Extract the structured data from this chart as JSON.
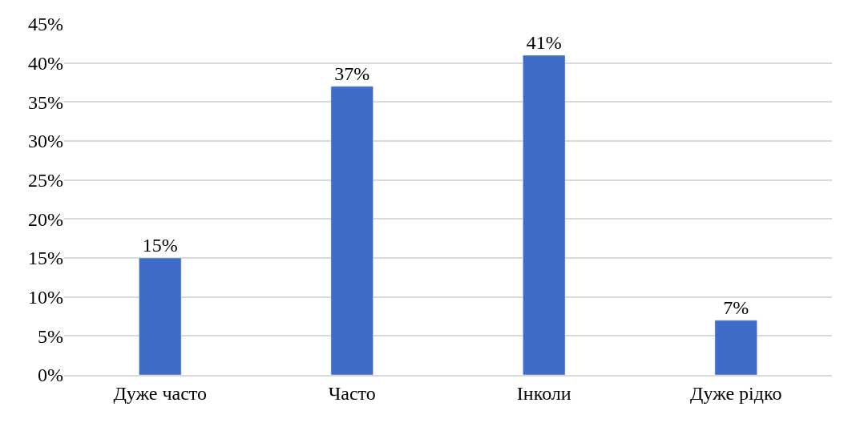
{
  "chart_data": {
    "type": "bar",
    "categories": [
      "Дуже часто",
      "Часто",
      "Інколи",
      "Дуже рідко"
    ],
    "values": [
      15,
      37,
      41,
      7
    ],
    "value_labels": [
      "15%",
      "37%",
      "41%",
      "7%"
    ],
    "color": "#3f6cc8",
    "ylim": [
      0,
      45
    ],
    "yticks": [
      {
        "value": 0,
        "label": "0%"
      },
      {
        "value": 5,
        "label": "5%"
      },
      {
        "value": 10,
        "label": "10%"
      },
      {
        "value": 15,
        "label": "15%"
      },
      {
        "value": 20,
        "label": "20%"
      },
      {
        "value": 25,
        "label": "25%"
      },
      {
        "value": 30,
        "label": "30%"
      },
      {
        "value": 35,
        "label": "35%"
      },
      {
        "value": 40,
        "label": "40%"
      },
      {
        "value": 45,
        "label": "45%"
      }
    ],
    "grid": "y"
  }
}
